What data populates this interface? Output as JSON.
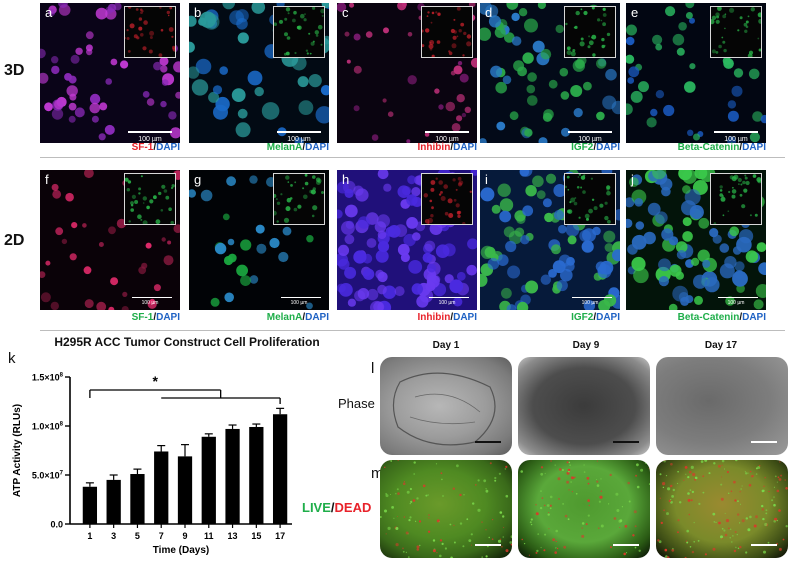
{
  "row_labels": {
    "top": "3D",
    "bottom": "2D"
  },
  "panels": [
    {
      "letter": "a",
      "scale": "100 µm",
      "stain": "SF-1",
      "dapi": "DAPI",
      "stain_color": "#e8222a",
      "row": 0,
      "col": 0,
      "theme": "magenta"
    },
    {
      "letter": "b",
      "scale": "100 µm",
      "stain": "MelanA",
      "dapi": "DAPI",
      "stain_color": "#1fae4a",
      "row": 0,
      "col": 1,
      "theme": "greenblue"
    },
    {
      "letter": "c",
      "scale": "100 µm",
      "stain": "Inhibin",
      "dapi": "DAPI",
      "stain_color": "#e8222a",
      "row": 0,
      "col": 2,
      "theme": "pink"
    },
    {
      "letter": "d",
      "scale": "100 µm",
      "stain": "IGF2",
      "dapi": "DAPI",
      "stain_color": "#1fae4a",
      "row": 0,
      "col": 3,
      "theme": "bluegreen"
    },
    {
      "letter": "e",
      "scale": "100 µm",
      "stain": "Beta-Catenin",
      "dapi": "DAPI",
      "stain_color": "#1fae4a",
      "row": 0,
      "col": 4,
      "theme": "bluegreen2"
    },
    {
      "letter": "f",
      "scale": "100 µm",
      "stain": "SF-1",
      "dapi": "DAPI",
      "stain_color": "#1fae4a",
      "row": 1,
      "col": 0,
      "theme": "redpink"
    },
    {
      "letter": "g",
      "scale": "100 µm",
      "stain": "MelanA",
      "dapi": "DAPI",
      "stain_color": "#1fae4a",
      "row": 1,
      "col": 1,
      "theme": "sparse"
    },
    {
      "letter": "h",
      "scale": "100 µm",
      "stain": "Inhibin",
      "dapi": "DAPI",
      "stain_color": "#e8222a",
      "row": 1,
      "col": 2,
      "theme": "purple"
    },
    {
      "letter": "i",
      "scale": "100 µm",
      "stain": "IGF2",
      "dapi": "DAPI",
      "stain_color": "#1fae4a",
      "row": 1,
      "col": 3,
      "theme": "bluegreen3"
    },
    {
      "letter": "j",
      "scale": "100 µm",
      "stain": "Beta-Catenin",
      "dapi": "DAPI",
      "stain_color": "#1fae4a",
      "row": 1,
      "col": 4,
      "theme": "green"
    }
  ],
  "dapi_color": "#1f62c4",
  "chart_data": {
    "type": "bar",
    "panel_letter": "k",
    "title": "H295R ACC Tumor Construct Cell Proliferation",
    "xlabel": "Time (Days)",
    "ylabel": "ATP Activity (RLUs)",
    "categories": [
      "1",
      "3",
      "5",
      "7",
      "9",
      "11",
      "13",
      "15",
      "17"
    ],
    "values": [
      38000000,
      45000000,
      51000000,
      74000000,
      69000000,
      89000000,
      97000000,
      99000000,
      112000000
    ],
    "errors": [
      4000000,
      5000000,
      5000000,
      6000000,
      12000000,
      3000000,
      4000000,
      3000000,
      6000000
    ],
    "ylim": [
      0,
      150000000
    ],
    "yticks": [
      {
        "value": 0,
        "base": "0.0",
        "exp": ""
      },
      {
        "value": 50000000,
        "base": "5.0×10",
        "exp": "7"
      },
      {
        "value": 100000000,
        "base": "1.0×10",
        "exp": "8"
      },
      {
        "value": 150000000,
        "base": "1.5×10",
        "exp": "8"
      }
    ],
    "significance": "*",
    "bar_color": "#000000"
  },
  "imaging": {
    "letter_l": "l",
    "letter_m": "m",
    "phase_label": "Phase",
    "live_label": "LIVE",
    "slash": "/",
    "dead_label": "DEAD",
    "live_color": "#1fae4a",
    "dead_color": "#e8222a",
    "days": [
      "Day 1",
      "Day 9",
      "Day 17"
    ]
  }
}
